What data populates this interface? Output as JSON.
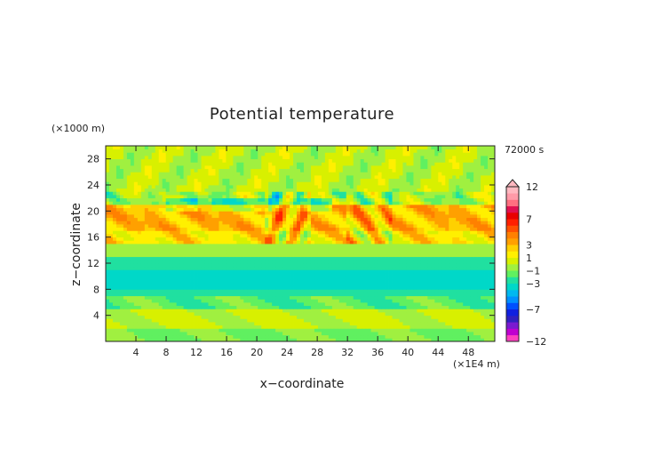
{
  "chart_data": {
    "type": "heatmap",
    "title": "Potential temperature",
    "xlabel": "x−coordinate",
    "ylabel": "z−coordinate",
    "x_unit": "(×1E4 m)",
    "y_unit": "(×1000 m)",
    "time_label": "72000 s",
    "xlim": [
      0,
      51.5
    ],
    "ylim": [
      0,
      30
    ],
    "x_ticks": [
      4,
      8,
      12,
      16,
      20,
      24,
      28,
      32,
      36,
      40,
      44,
      48
    ],
    "x_tick_labels": [
      "4",
      "8",
      "12",
      "16",
      "20",
      "24",
      "28",
      "32",
      "36",
      "40",
      "44",
      "48"
    ],
    "y_ticks": [
      4,
      8,
      12,
      16,
      20,
      24,
      28
    ],
    "y_tick_labels": [
      "4",
      "8",
      "12",
      "16",
      "20",
      "24",
      "28"
    ],
    "colorbar": {
      "levels": [
        -12,
        -11,
        -10,
        -9,
        -8,
        -7,
        -6,
        -5,
        -4,
        -3,
        -2,
        -1,
        0,
        1,
        2,
        3,
        4,
        5,
        6,
        7,
        8,
        9,
        10,
        11,
        12
      ],
      "labels": [
        "12",
        "7",
        "3",
        "1",
        "−1",
        "−3",
        "−7",
        "−12"
      ],
      "label_values": [
        12,
        7,
        3,
        1,
        -1,
        -3,
        -7,
        -12
      ],
      "colors": [
        "#ff40c0",
        "#c000d0",
        "#7a1ad0",
        "#3020c0",
        "#1020e0",
        "#0050ff",
        "#0090ff",
        "#00b8f0",
        "#00d8c8",
        "#20e0a0",
        "#60f060",
        "#a0f040",
        "#d8f000",
        "#fff000",
        "#ffd000",
        "#ffa000",
        "#ff8000",
        "#ff5000",
        "#ff2000",
        "#e80000",
        "#e01050",
        "#ff7080",
        "#ff9aa8",
        "#ffb8c0"
      ]
    },
    "field": {
      "description": "Perturbation field, values in colorbar units",
      "bands": [
        {
          "z_range": [
            0,
            2
          ],
          "value": -1.2
        },
        {
          "z_range": [
            2,
            5
          ],
          "value": 0.2
        },
        {
          "z_range": [
            5,
            7
          ],
          "value": -1.6
        },
        {
          "z_range": [
            7,
            8
          ],
          "value": -2.5
        },
        {
          "z_range": [
            8,
            11
          ],
          "value": -3.5
        },
        {
          "z_range": [
            11,
            13
          ],
          "value": -2.2
        },
        {
          "z_range": [
            13,
            15
          ],
          "value": -0.8
        },
        {
          "z_range": [
            15,
            17
          ],
          "value": 1.8
        },
        {
          "z_range": [
            17,
            21
          ],
          "value": 3.0
        },
        {
          "z_range": [
            21,
            23
          ],
          "value": -0.5
        },
        {
          "z_range": [
            23,
            30
          ],
          "value": 0.0
        }
      ]
    }
  }
}
